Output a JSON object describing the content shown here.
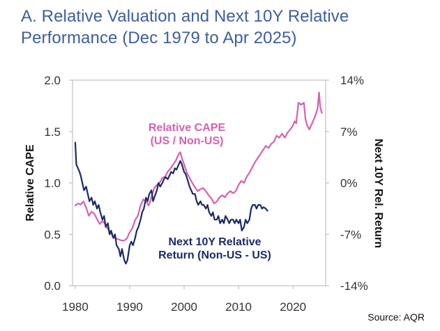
{
  "title_line1": "A. Relative Valuation and Next 10Y Relative",
  "title_line2": "Performance (Dec 1979 to Apr 2025)",
  "source": "Source: AQR",
  "chart_data": {
    "type": "line",
    "title": "A. Relative Valuation and Next 10Y Relative Performance (Dec 1979 to Apr 2025)",
    "xlabel": "",
    "ylabel": "Relative CAPE",
    "y2label": "Next 10Y Rel. Return",
    "xlim": [
      1979.5,
      2026
    ],
    "ylim": [
      0,
      2
    ],
    "y2lim": [
      -14,
      14
    ],
    "xticks": [
      1980,
      1990,
      2000,
      2010,
      2020
    ],
    "xtick_labels": [
      "1980",
      "1990",
      "2000",
      "2010",
      "2020"
    ],
    "yticks": [
      0,
      0.5,
      1,
      1.5,
      2
    ],
    "ytick_labels": [
      "0.0",
      "0.5",
      "1.0",
      "1.5",
      "2.0"
    ],
    "y2ticks": [
      -14,
      -7,
      0,
      7,
      14
    ],
    "y2tick_labels": [
      "-14%",
      "-7%",
      "0%",
      "7%",
      "14%"
    ],
    "grid": false,
    "series": [
      {
        "name": "Relative CAPE (US / Non-US)",
        "label_lines": [
          "Relative CAPE",
          "(US / Non-US)"
        ],
        "axis": "left",
        "color": "#d95fb0",
        "x": [
          1980.0,
          1980.5,
          1981.0,
          1981.5,
          1982.0,
          1982.5,
          1983.0,
          1983.5,
          1984.0,
          1984.5,
          1985.0,
          1985.5,
          1986.0,
          1986.5,
          1987.0,
          1987.5,
          1988.0,
          1988.5,
          1989.0,
          1989.5,
          1990.0,
          1990.5,
          1991.0,
          1991.5,
          1992.0,
          1992.5,
          1993.0,
          1993.5,
          1994.0,
          1994.5,
          1995.0,
          1995.5,
          1996.0,
          1996.5,
          1997.0,
          1997.5,
          1998.0,
          1998.5,
          1999.0,
          1999.3,
          1999.6,
          2000.0,
          2000.5,
          2001.0,
          2001.5,
          2002.0,
          2002.5,
          2003.0,
          2003.5,
          2004.0,
          2004.5,
          2005.0,
          2005.5,
          2006.0,
          2006.5,
          2007.0,
          2007.5,
          2008.0,
          2008.5,
          2009.0,
          2009.5,
          2010.0,
          2010.5,
          2011.0,
          2011.5,
          2012.0,
          2012.5,
          2013.0,
          2013.5,
          2014.0,
          2014.5,
          2015.0,
          2015.5,
          2016.0,
          2016.5,
          2017.0,
          2017.5,
          2018.0,
          2018.5,
          2019.0,
          2019.5,
          2020.0,
          2020.3,
          2020.6,
          2021.0,
          2021.5,
          2022.0,
          2022.3,
          2022.6,
          2023.0,
          2023.5,
          2024.0,
          2024.5,
          2024.8,
          2025.0,
          2025.3
        ],
        "values": [
          0.78,
          0.8,
          0.79,
          0.82,
          0.76,
          0.68,
          0.72,
          0.7,
          0.65,
          0.6,
          0.63,
          0.6,
          0.55,
          0.52,
          0.47,
          0.46,
          0.45,
          0.44,
          0.44,
          0.46,
          0.52,
          0.56,
          0.64,
          0.68,
          0.78,
          0.84,
          0.82,
          0.78,
          0.86,
          0.95,
          0.98,
          1.0,
          1.05,
          1.06,
          1.11,
          1.14,
          1.18,
          1.22,
          1.28,
          1.3,
          1.24,
          1.18,
          1.1,
          1.05,
          1.0,
          0.96,
          0.92,
          0.94,
          0.95,
          0.92,
          0.88,
          0.85,
          0.8,
          0.82,
          0.86,
          0.88,
          0.86,
          0.9,
          0.92,
          0.9,
          0.92,
          0.98,
          1.02,
          1.0,
          1.06,
          1.1,
          1.15,
          1.2,
          1.24,
          1.28,
          1.32,
          1.36,
          1.34,
          1.38,
          1.4,
          1.46,
          1.44,
          1.48,
          1.44,
          1.49,
          1.52,
          1.56,
          1.6,
          1.58,
          1.78,
          1.76,
          1.78,
          1.62,
          1.56,
          1.52,
          1.58,
          1.64,
          1.72,
          1.88,
          1.74,
          1.68
        ]
      },
      {
        "name": "Next 10Y Relative Return (Non-US - US)",
        "label_lines": [
          "Next 10Y Relative",
          "Return (Non-US - US)"
        ],
        "axis": "right",
        "color": "#1c2a68",
        "x": [
          1980.0,
          1980.2,
          1980.5,
          1980.8,
          1981.0,
          1981.3,
          1981.6,
          1982.0,
          1982.3,
          1982.6,
          1983.0,
          1983.3,
          1983.6,
          1984.0,
          1984.3,
          1984.6,
          1985.0,
          1985.3,
          1985.6,
          1986.0,
          1986.3,
          1986.6,
          1987.0,
          1987.3,
          1987.6,
          1988.0,
          1988.3,
          1988.6,
          1989.0,
          1989.3,
          1989.6,
          1990.0,
          1990.3,
          1990.6,
          1991.0,
          1991.3,
          1991.6,
          1992.0,
          1992.3,
          1992.6,
          1993.0,
          1993.3,
          1993.6,
          1994.0,
          1994.3,
          1994.6,
          1995.0,
          1995.3,
          1995.6,
          1996.0,
          1996.3,
          1996.6,
          1997.0,
          1997.3,
          1997.6,
          1998.0,
          1998.3,
          1998.6,
          1999.0,
          1999.3,
          1999.6,
          2000.0,
          2000.3,
          2000.6,
          2001.0,
          2001.3,
          2001.6,
          2002.0,
          2002.3,
          2002.6,
          2003.0,
          2003.3,
          2003.6,
          2004.0,
          2004.3,
          2004.6,
          2005.0,
          2005.3,
          2005.6,
          2006.0,
          2006.3,
          2006.6,
          2007.0,
          2007.3,
          2007.6,
          2008.0,
          2008.3,
          2008.6,
          2009.0,
          2009.3,
          2009.6,
          2010.0,
          2010.3,
          2010.6,
          2011.0,
          2011.3,
          2011.6,
          2012.0,
          2012.3,
          2012.6,
          2013.0,
          2013.3,
          2013.6,
          2014.0,
          2014.3,
          2014.6,
          2015.0,
          2015.3
        ],
        "values": [
          5.5,
          2.5,
          2.0,
          1.5,
          1.0,
          0.0,
          -1.0,
          -0.5,
          -1.5,
          -2.5,
          -2.0,
          -3.0,
          -2.5,
          -3.5,
          -3.0,
          -4.0,
          -5.0,
          -4.5,
          -6.0,
          -5.5,
          -7.0,
          -6.5,
          -7.5,
          -7.0,
          -8.5,
          -9.0,
          -10.0,
          -9.0,
          -10.5,
          -11.0,
          -10.5,
          -8.5,
          -8.0,
          -8.5,
          -7.5,
          -6.5,
          -6.0,
          -5.0,
          -4.0,
          -3.5,
          -2.0,
          -2.5,
          -1.5,
          -1.0,
          -2.5,
          -1.8,
          -1.0,
          0.0,
          -0.5,
          0.0,
          0.5,
          0.8,
          0.5,
          1.0,
          1.5,
          1.3,
          2.0,
          1.8,
          2.5,
          3.0,
          2.5,
          1.5,
          1.2,
          0.5,
          -0.5,
          -1.0,
          -1.5,
          -1.5,
          -2.5,
          -3.0,
          -2.5,
          -3.0,
          -3.0,
          -3.5,
          -3.0,
          -4.0,
          -4.5,
          -4.0,
          -5.0,
          -5.0,
          -4.5,
          -5.5,
          -5.0,
          -5.5,
          -4.5,
          -5.0,
          -5.5,
          -5.0,
          -5.0,
          -5.5,
          -5.0,
          -5.5,
          -5.0,
          -6.5,
          -6.0,
          -5.0,
          -5.5,
          -5.0,
          -3.5,
          -3.0,
          -3.0,
          -3.5,
          -3.0,
          -3.0,
          -3.5,
          -3.3,
          -3.5,
          -3.8
        ]
      }
    ]
  }
}
